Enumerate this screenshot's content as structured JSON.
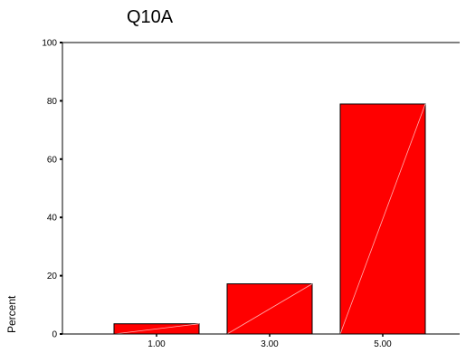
{
  "chart_data": {
    "type": "bar",
    "title": "Q10A",
    "xlabel": "",
    "ylabel": "Percent",
    "categories": [
      "1.00",
      "3.00",
      "5.00"
    ],
    "values": [
      3.5,
      17.2,
      78.9
    ],
    "ylim": [
      0,
      100
    ],
    "yticks": [
      "0",
      "20",
      "40",
      "60",
      "80",
      "100"
    ],
    "grid": false,
    "legend": "none",
    "bar_color": "#ff0000",
    "bar_edge_color": "#000000"
  }
}
